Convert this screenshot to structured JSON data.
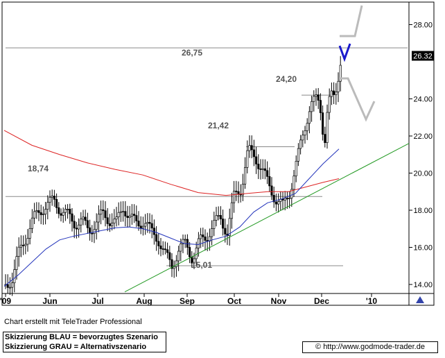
{
  "chart_data": {
    "type": "candlestick",
    "x_ticks": [
      "'09",
      "Jun",
      "Jul",
      "Aug",
      "Sep",
      "Oct",
      "Nov",
      "Dec",
      "'10"
    ],
    "y_ticks": [
      "14.00",
      "16.00",
      "18.00",
      "20.00",
      "22.00",
      "24.00",
      "28.00"
    ],
    "ylim": [
      13.3,
      29.2
    ],
    "last_price": "26.32",
    "annotations": [
      "26,75",
      "24,20",
      "21,42",
      "18,74",
      "15,01"
    ],
    "levels": [
      26.75,
      24.2,
      21.42,
      18.74,
      15.01
    ],
    "moving_averages": [
      {
        "color": "#dd2222",
        "points": [
          [
            0,
            22.3
          ],
          [
            40,
            21.5
          ],
          [
            80,
            21.0
          ],
          [
            120,
            20.55
          ],
          [
            160,
            20.2
          ],
          [
            200,
            19.9
          ],
          [
            240,
            19.4
          ],
          [
            280,
            18.95
          ],
          [
            320,
            18.8
          ],
          [
            350,
            18.9
          ],
          [
            380,
            19.0
          ],
          [
            410,
            19.0
          ],
          [
            430,
            19.2
          ],
          [
            460,
            19.5
          ],
          [
            483,
            19.7
          ]
        ]
      },
      {
        "color": "#2233bb",
        "points": [
          [
            0,
            13.9
          ],
          [
            20,
            14.5
          ],
          [
            40,
            15.2
          ],
          [
            60,
            15.9
          ],
          [
            80,
            16.4
          ],
          [
            100,
            16.6
          ],
          [
            120,
            16.75
          ],
          [
            140,
            16.9
          ],
          [
            160,
            17.05
          ],
          [
            180,
            17.1
          ],
          [
            200,
            17.0
          ],
          [
            220,
            16.8
          ],
          [
            240,
            16.5
          ],
          [
            260,
            16.2
          ],
          [
            280,
            16.15
          ],
          [
            300,
            16.4
          ],
          [
            320,
            16.6
          ],
          [
            340,
            17.1
          ],
          [
            360,
            17.9
          ],
          [
            380,
            18.4
          ],
          [
            400,
            18.6
          ],
          [
            420,
            18.9
          ],
          [
            440,
            19.7
          ],
          [
            460,
            20.5
          ],
          [
            483,
            21.3
          ]
        ]
      }
    ],
    "trendline": {
      "color": "#229922",
      "from": [
        180,
        13.6
      ],
      "to": [
        590,
        21.6
      ]
    }
  },
  "footer": {
    "credit": "Chart erstellt mit TeleTrader Professional",
    "legend_blue": "Skizzierung BLAU = bevorzugtes Szenario",
    "legend_gray": "Skizzierung GRAU = Alternativszenario",
    "source": "© http://www.godmode-trader.de"
  }
}
